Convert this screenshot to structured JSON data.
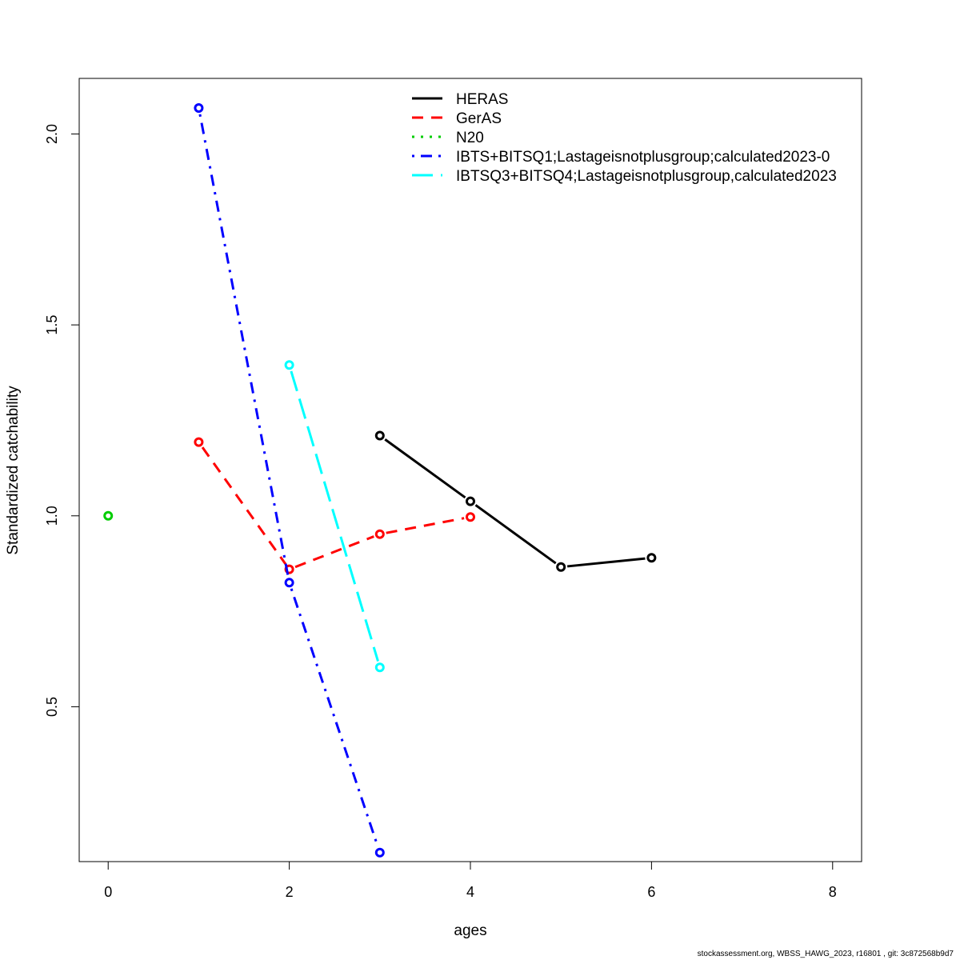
{
  "chart_data": {
    "type": "line",
    "title": "",
    "xlabel": "ages",
    "ylabel": "Standardized catchability",
    "xlim": [
      -0.32,
      8.32
    ],
    "ylim": [
      0.0945,
      2.1455
    ],
    "xticks": [
      0,
      2,
      4,
      6,
      8
    ],
    "xtick_labels": [
      "0",
      "2",
      "4",
      "6",
      "8"
    ],
    "yticks": [
      0.5,
      1.0,
      1.5,
      2.0
    ],
    "ytick_labels": [
      "0.5",
      "1.0",
      "1.5",
      "2.0"
    ],
    "grid": false,
    "legend_position": "top-center",
    "series": [
      {
        "name": "HERAS",
        "color": "#000000",
        "dash": "solid",
        "x": [
          3,
          4,
          5,
          6
        ],
        "y": [
          1.21,
          1.038,
          0.866,
          0.89
        ]
      },
      {
        "name": "GerAS",
        "color": "#ff0000",
        "dash": "dashed",
        "x": [
          1,
          2,
          3,
          4
        ],
        "y": [
          1.193,
          0.86,
          0.952,
          0.997
        ]
      },
      {
        "name": "N20",
        "color": "#00cd00",
        "dash": "dotted",
        "x": [
          0
        ],
        "y": [
          1.0
        ]
      },
      {
        "name": "IBTS+BITSQ1;Lastageisnotplusgroup;calculated2023-0",
        "color": "#0000ff",
        "dash": "dotdash",
        "x": [
          1,
          2,
          3
        ],
        "y": [
          2.068,
          0.825,
          0.118
        ]
      },
      {
        "name": "IBTSQ3+BITSQ4;Lastageisnotplusgroup,calculated2023",
        "color": "#00ffff",
        "dash": "longdash",
        "x": [
          2,
          3
        ],
        "y": [
          1.395,
          0.603
        ]
      }
    ]
  },
  "footer": {
    "text": "stockassessment.org, WBSS_HAWG_2023, r16801 , git: 3c872568b9d7"
  }
}
